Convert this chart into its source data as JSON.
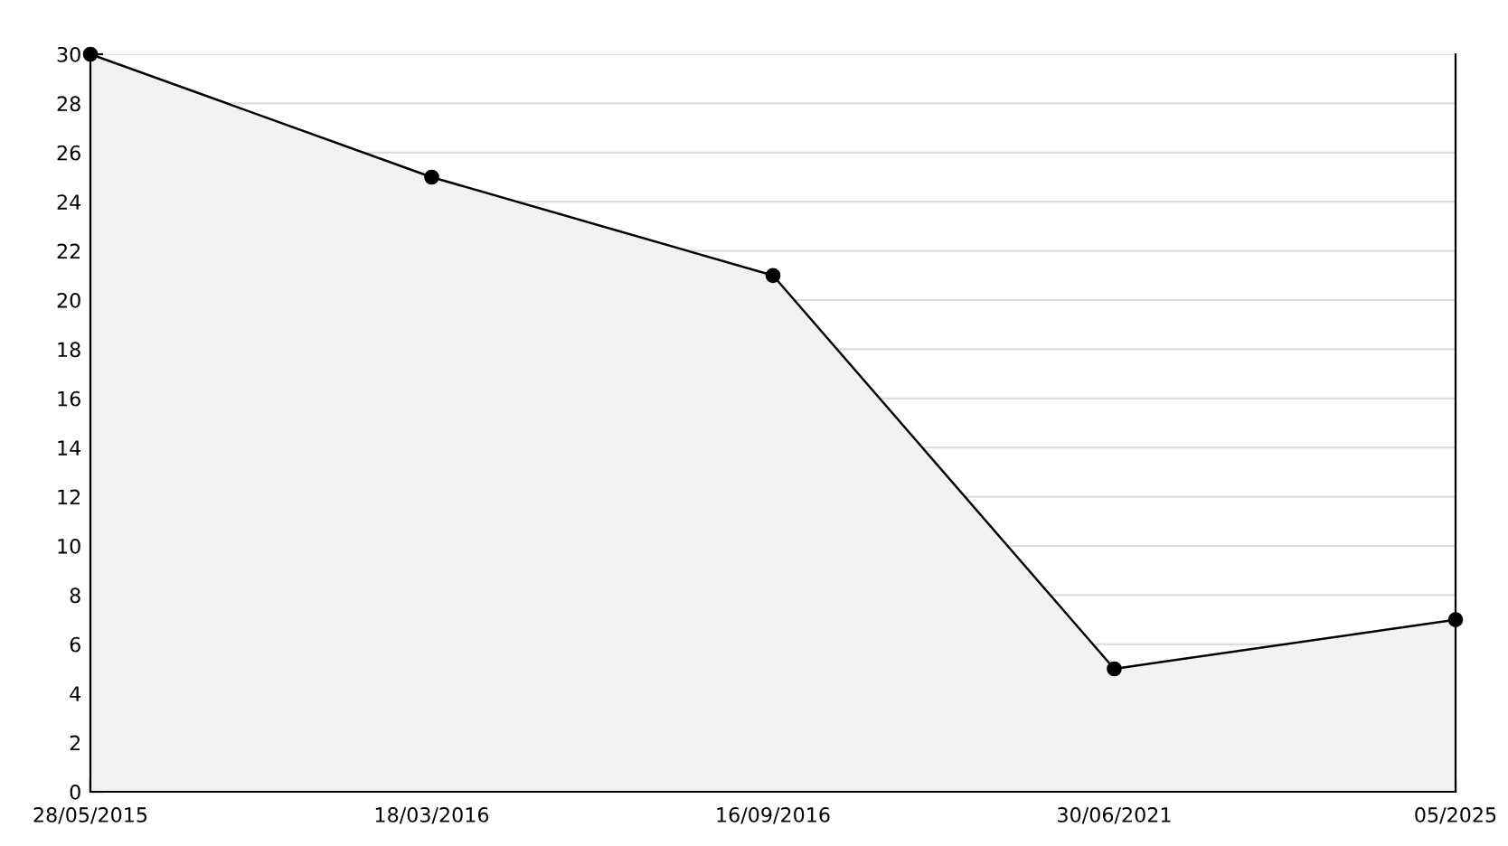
{
  "chart_data": {
    "type": "area",
    "categories": [
      "28/05/2015",
      "18/03/2016",
      "16/09/2016",
      "30/06/2021",
      "05/2025"
    ],
    "series": [
      {
        "color": "#000000",
        "values": [
          30,
          25,
          21,
          5,
          7
        ]
      }
    ],
    "ylim": [
      0,
      30
    ],
    "yticks": [
      0,
      2,
      4,
      6,
      8,
      10,
      12,
      14,
      16,
      18,
      20,
      22,
      24,
      26,
      28,
      30
    ],
    "grid": "y",
    "marker": "circle",
    "line_style": "solid"
  }
}
